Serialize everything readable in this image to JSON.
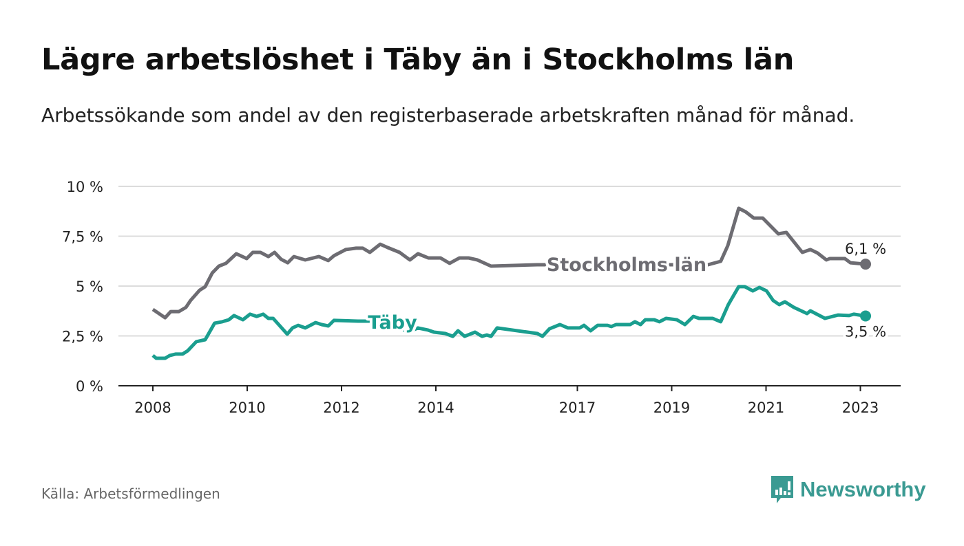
{
  "title": "Lägre arbetslöshet i Täby än i Stockholms län",
  "subtitle": "Arbetssökande som andel av den registerbaserade arbetskraften månad för månad.",
  "source": "Källa: Arbetsförmedlingen",
  "logo": "Newsworthy",
  "chart_data": {
    "type": "line",
    "title": "Lägre arbetslöshet i Täby än i Stockholms län",
    "xlabel": "",
    "ylabel": "",
    "ylim": [
      0,
      10
    ],
    "xlim": [
      2007.3,
      2023.8
    ],
    "grid": true,
    "yticks": [
      {
        "v": 0,
        "label": "0 %"
      },
      {
        "v": 2.5,
        "label": "2,5 %"
      },
      {
        "v": 5,
        "label": "5 %"
      },
      {
        "v": 7.5,
        "label": "7,5 %"
      },
      {
        "v": 10,
        "label": "10 %"
      }
    ],
    "xticks": [
      {
        "v": 2008,
        "label": "2008"
      },
      {
        "v": 2010,
        "label": "2010"
      },
      {
        "v": 2012,
        "label": "2012"
      },
      {
        "v": 2014,
        "label": "2014"
      },
      {
        "v": 2017,
        "label": "2017"
      },
      {
        "v": 2019,
        "label": "2019"
      },
      {
        "v": 2021,
        "label": "2021"
      },
      {
        "v": 2023,
        "label": "2023"
      }
    ],
    "series": [
      {
        "name": "Stockholms län",
        "color": "#6d6c72",
        "end_label": "6,1 %",
        "points": [
          [
            2008.0,
            3.83
          ],
          [
            2008.26,
            3.41
          ],
          [
            2008.38,
            3.72
          ],
          [
            2008.55,
            3.72
          ],
          [
            2008.7,
            3.93
          ],
          [
            2008.8,
            4.28
          ],
          [
            2008.99,
            4.79
          ],
          [
            2009.11,
            4.97
          ],
          [
            2009.26,
            5.66
          ],
          [
            2009.4,
            6.0
          ],
          [
            2009.55,
            6.14
          ],
          [
            2009.77,
            6.62
          ],
          [
            2009.99,
            6.38
          ],
          [
            2010.12,
            6.69
          ],
          [
            2010.28,
            6.69
          ],
          [
            2010.45,
            6.48
          ],
          [
            2010.58,
            6.69
          ],
          [
            2010.72,
            6.34
          ],
          [
            2010.86,
            6.17
          ],
          [
            2010.99,
            6.48
          ],
          [
            2011.23,
            6.31
          ],
          [
            2011.52,
            6.48
          ],
          [
            2011.72,
            6.28
          ],
          [
            2011.84,
            6.52
          ],
          [
            2012.09,
            6.83
          ],
          [
            2012.31,
            6.9
          ],
          [
            2012.45,
            6.9
          ],
          [
            2012.6,
            6.69
          ],
          [
            2012.82,
            7.1
          ],
          [
            2012.98,
            6.93
          ],
          [
            2013.23,
            6.69
          ],
          [
            2013.45,
            6.31
          ],
          [
            2013.62,
            6.62
          ],
          [
            2013.84,
            6.41
          ],
          [
            2014.1,
            6.41
          ],
          [
            2014.29,
            6.14
          ],
          [
            2014.5,
            6.41
          ],
          [
            2014.69,
            6.41
          ],
          [
            2014.88,
            6.31
          ],
          [
            2015.17,
            6.0
          ],
          [
            2016.15,
            6.07
          ],
          [
            2019.77,
            6.07
          ],
          [
            2020.04,
            6.24
          ],
          [
            2020.19,
            7.03
          ],
          [
            2020.42,
            8.9
          ],
          [
            2020.57,
            8.72
          ],
          [
            2020.74,
            8.41
          ],
          [
            2020.93,
            8.41
          ],
          [
            2021.26,
            7.62
          ],
          [
            2021.43,
            7.69
          ],
          [
            2021.77,
            6.69
          ],
          [
            2021.94,
            6.83
          ],
          [
            2022.09,
            6.66
          ],
          [
            2022.28,
            6.31
          ],
          [
            2022.35,
            6.38
          ],
          [
            2022.67,
            6.38
          ],
          [
            2022.79,
            6.17
          ],
          [
            2022.91,
            6.14
          ],
          [
            2023.11,
            6.1
          ]
        ]
      },
      {
        "name": "Täby",
        "color": "#1a9e8f",
        "end_label": "3,5 %",
        "points": [
          [
            2008.0,
            1.52
          ],
          [
            2008.07,
            1.38
          ],
          [
            2008.26,
            1.38
          ],
          [
            2008.36,
            1.52
          ],
          [
            2008.48,
            1.59
          ],
          [
            2008.63,
            1.59
          ],
          [
            2008.74,
            1.76
          ],
          [
            2008.92,
            2.21
          ],
          [
            2009.11,
            2.31
          ],
          [
            2009.31,
            3.14
          ],
          [
            2009.47,
            3.21
          ],
          [
            2009.61,
            3.31
          ],
          [
            2009.72,
            3.52
          ],
          [
            2009.91,
            3.31
          ],
          [
            2010.06,
            3.59
          ],
          [
            2010.2,
            3.48
          ],
          [
            2010.34,
            3.59
          ],
          [
            2010.45,
            3.38
          ],
          [
            2010.55,
            3.38
          ],
          [
            2010.85,
            2.59
          ],
          [
            2010.96,
            2.9
          ],
          [
            2011.08,
            3.03
          ],
          [
            2011.23,
            2.9
          ],
          [
            2011.45,
            3.17
          ],
          [
            2011.58,
            3.07
          ],
          [
            2011.72,
            3.0
          ],
          [
            2011.84,
            3.28
          ],
          [
            2012.35,
            3.24
          ],
          [
            2012.91,
            3.24
          ],
          [
            2013.18,
            2.97
          ],
          [
            2013.42,
            2.69
          ],
          [
            2013.62,
            2.9
          ],
          [
            2013.84,
            2.79
          ],
          [
            2013.96,
            2.69
          ],
          [
            2014.2,
            2.62
          ],
          [
            2014.36,
            2.48
          ],
          [
            2014.47,
            2.76
          ],
          [
            2014.61,
            2.48
          ],
          [
            2014.83,
            2.69
          ],
          [
            2014.98,
            2.48
          ],
          [
            2015.08,
            2.55
          ],
          [
            2015.17,
            2.48
          ],
          [
            2015.3,
            2.9
          ],
          [
            2016.15,
            2.62
          ],
          [
            2016.26,
            2.48
          ],
          [
            2016.41,
            2.86
          ],
          [
            2016.63,
            3.07
          ],
          [
            2016.8,
            2.9
          ],
          [
            2017.05,
            2.9
          ],
          [
            2017.14,
            3.03
          ],
          [
            2017.28,
            2.76
          ],
          [
            2017.43,
            3.03
          ],
          [
            2017.64,
            3.03
          ],
          [
            2017.72,
            2.97
          ],
          [
            2017.82,
            3.07
          ],
          [
            2018.12,
            3.07
          ],
          [
            2018.22,
            3.21
          ],
          [
            2018.34,
            3.07
          ],
          [
            2018.44,
            3.31
          ],
          [
            2018.63,
            3.31
          ],
          [
            2018.74,
            3.21
          ],
          [
            2018.88,
            3.38
          ],
          [
            2019.11,
            3.31
          ],
          [
            2019.28,
            3.07
          ],
          [
            2019.46,
            3.48
          ],
          [
            2019.58,
            3.38
          ],
          [
            2019.87,
            3.38
          ],
          [
            2020.04,
            3.21
          ],
          [
            2020.2,
            4.07
          ],
          [
            2020.42,
            4.97
          ],
          [
            2020.55,
            4.97
          ],
          [
            2020.72,
            4.76
          ],
          [
            2020.86,
            4.93
          ],
          [
            2021.01,
            4.76
          ],
          [
            2021.15,
            4.28
          ],
          [
            2021.28,
            4.07
          ],
          [
            2021.4,
            4.21
          ],
          [
            2021.59,
            3.93
          ],
          [
            2021.87,
            3.62
          ],
          [
            2021.94,
            3.76
          ],
          [
            2022.25,
            3.38
          ],
          [
            2022.53,
            3.55
          ],
          [
            2022.76,
            3.52
          ],
          [
            2022.86,
            3.59
          ],
          [
            2023.11,
            3.5
          ]
        ]
      }
    ]
  }
}
